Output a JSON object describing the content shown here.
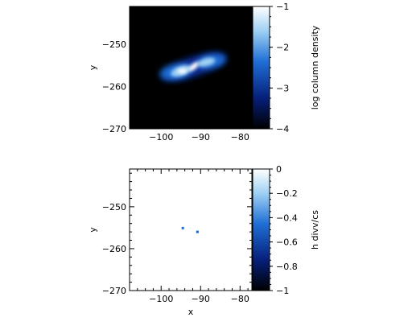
{
  "chart_data": [
    {
      "type": "heatmap",
      "xlabel": "",
      "ylabel": "y",
      "xlim": [
        -108,
        -77
      ],
      "ylim": [
        -270,
        -241
      ],
      "xticks": [
        -100,
        -90,
        -80
      ],
      "yticks": [
        -250,
        -260,
        -270
      ],
      "grid": false,
      "colorbar": {
        "label": "log column density",
        "range": [
          -4,
          -1
        ],
        "ticks": [
          -1,
          -2,
          -3,
          -4
        ],
        "colors": [
          "#000000",
          "#061f7a",
          "#1f6fd6",
          "#9fd0f4",
          "#ffffff"
        ]
      },
      "background_value": -4,
      "features": [
        {
          "name": "left-lobe",
          "x": -95,
          "y": -256.3,
          "peak": -1.1
        },
        {
          "name": "right-lobe",
          "x": -88.5,
          "y": -254.2,
          "peak": -1.3
        }
      ]
    },
    {
      "type": "heatmap",
      "xlabel": "x",
      "ylabel": "y",
      "xlim": [
        -108,
        -77
      ],
      "ylim": [
        -270,
        -241
      ],
      "xticks": [
        -100,
        -90,
        -80
      ],
      "yticks": [
        -250,
        -260,
        -270
      ],
      "grid": false,
      "colorbar": {
        "label": "h divv/cs",
        "range": [
          -1,
          0
        ],
        "ticks": [
          0,
          -0.2,
          -0.4,
          -0.6,
          -0.8,
          -1
        ],
        "colors": [
          "#000000",
          "#061f7a",
          "#1f6fd6",
          "#9fd0f4",
          "#ffffff"
        ]
      },
      "background_value": 0,
      "points": [
        {
          "x": -94.5,
          "y": -255.1,
          "value": -0.45
        },
        {
          "x": -90.8,
          "y": -256.0,
          "value": -0.5
        }
      ]
    }
  ]
}
